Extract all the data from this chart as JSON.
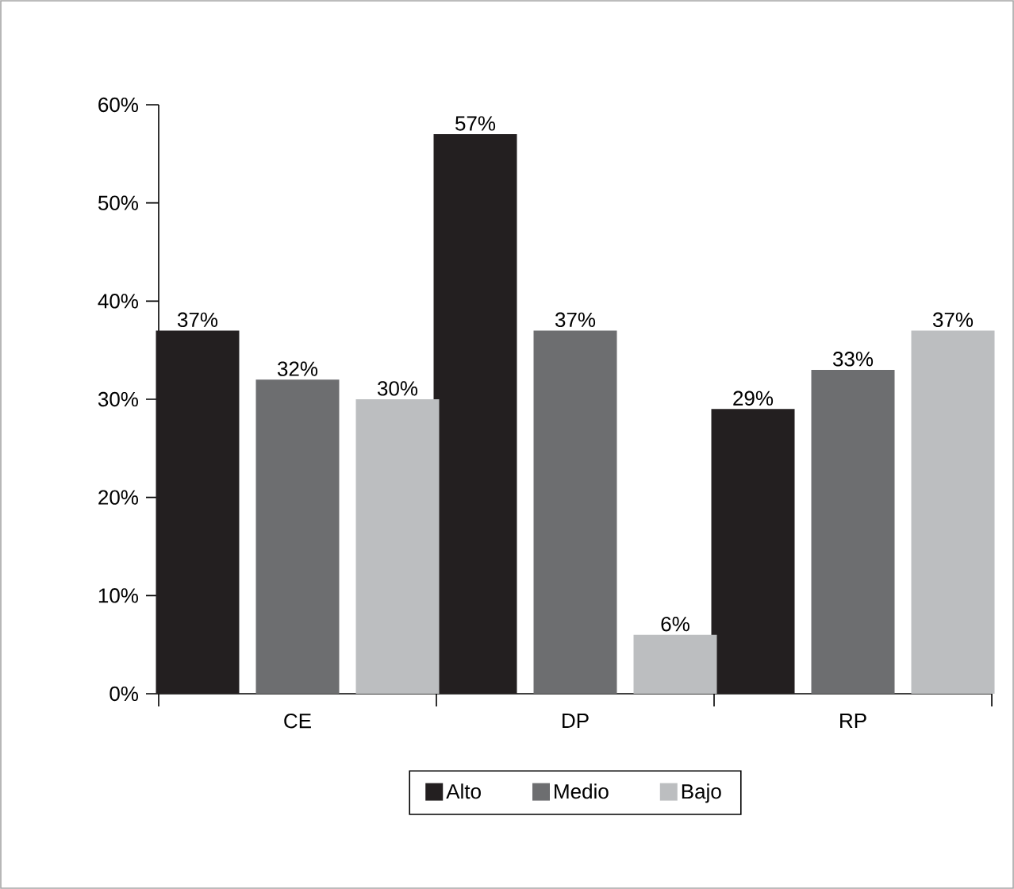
{
  "chart_data": {
    "type": "bar",
    "categories": [
      "CE",
      "DP",
      "RP"
    ],
    "series": [
      {
        "name": "Alto",
        "color": "#231f20",
        "values": [
          37,
          57,
          29
        ],
        "value_labels": [
          "37%",
          "57%",
          "29%"
        ]
      },
      {
        "name": "Medio",
        "color": "#6d6e70",
        "values": [
          32,
          37,
          33
        ],
        "value_labels": [
          "32%",
          "37%",
          "33%"
        ]
      },
      {
        "name": "Bajo",
        "color": "#bcbec0",
        "values": [
          30,
          6,
          37
        ],
        "value_labels": [
          "30%",
          "6%",
          "37%"
        ]
      }
    ],
    "ylim": [
      0,
      60
    ],
    "yticks": [
      {
        "value": 0,
        "label": "0%"
      },
      {
        "value": 10,
        "label": "10%"
      },
      {
        "value": 20,
        "label": "20%"
      },
      {
        "value": 30,
        "label": "30%"
      },
      {
        "value": 40,
        "label": "40%"
      },
      {
        "value": 50,
        "label": "50%"
      },
      {
        "value": 60,
        "label": "60%"
      }
    ],
    "grid": false,
    "legend": "bottom"
  }
}
